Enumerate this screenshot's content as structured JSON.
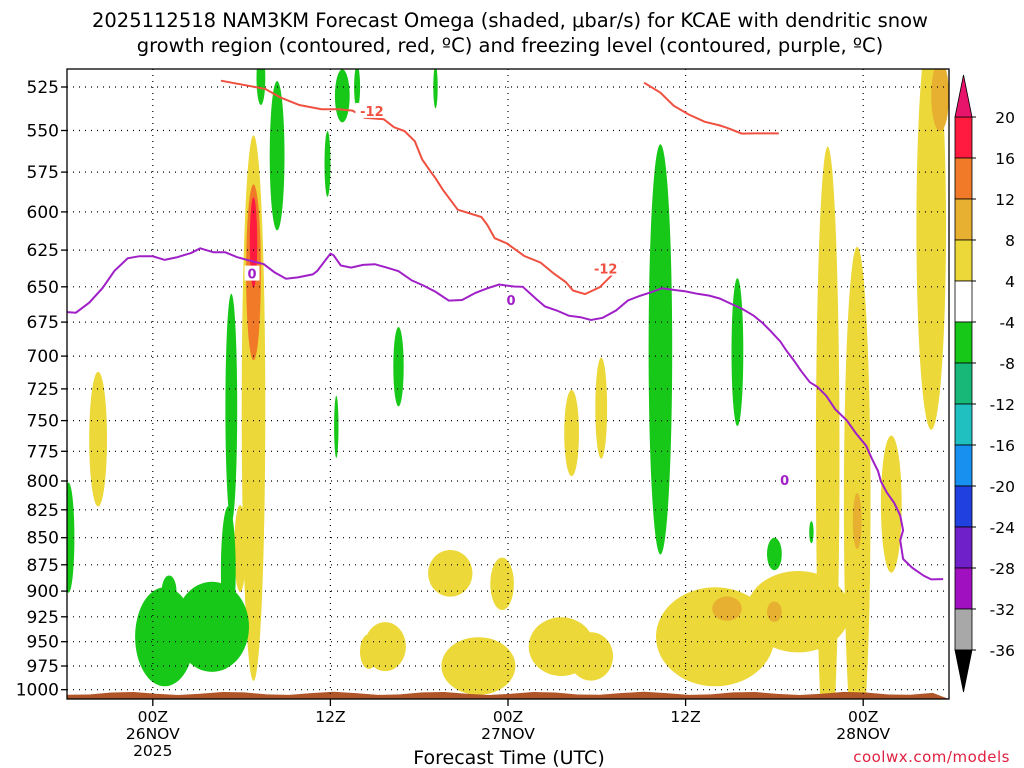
{
  "chart_data": {
    "type": "time-height cross section (filled contour + line contours)",
    "title_line1": "2025112518 NAM3KM Forecast Omega (shaded, μbar/s) for KCAE with dendritic snow",
    "title_line2": "growth region (contoured, red, ºC) and freezing level (contoured, purple, ºC)",
    "xlabel": "Forecast Time (UTC)",
    "ylabel_levels_hPa": [
      525,
      550,
      575,
      600,
      625,
      650,
      675,
      700,
      725,
      750,
      775,
      800,
      825,
      850,
      875,
      900,
      925,
      950,
      975,
      1000
    ],
    "ylim_hPa": [
      1010,
      515
    ],
    "xlim_hours_from_00Z26NOV": [
      -5.8,
      53.8
    ],
    "xticks": [
      {
        "hour": 0,
        "lines": [
          "00Z",
          "26NOV",
          "2025"
        ]
      },
      {
        "hour": 12,
        "lines": [
          "12Z"
        ]
      },
      {
        "hour": 24,
        "lines": [
          "00Z",
          "27NOV"
        ]
      },
      {
        "hour": 36,
        "lines": [
          "12Z"
        ]
      },
      {
        "hour": 48,
        "lines": [
          "00Z",
          "28NOV"
        ]
      }
    ],
    "grid": "dotted",
    "colorbar": {
      "position": "right",
      "labels": [
        20,
        16,
        12,
        8,
        4,
        -4,
        -8,
        -12,
        -16,
        -20,
        -24,
        -28,
        -32,
        -36
      ],
      "bands": [
        {
          "lo": 16,
          "hi": 20,
          "color": "#ff1a40"
        },
        {
          "lo": 12,
          "hi": 16,
          "color": "#f07a28"
        },
        {
          "lo": 8,
          "hi": 12,
          "color": "#e8b030"
        },
        {
          "lo": 4,
          "hi": 8,
          "color": "#ecd838"
        },
        {
          "lo": -4,
          "hi": 4,
          "color": "#ffffff"
        },
        {
          "lo": -8,
          "hi": -4,
          "color": "#18c818"
        },
        {
          "lo": -12,
          "hi": -8,
          "color": "#18b878"
        },
        {
          "lo": -16,
          "hi": -12,
          "color": "#20c0c0"
        },
        {
          "lo": -20,
          "hi": -16,
          "color": "#1890f0"
        },
        {
          "lo": -24,
          "hi": -20,
          "color": "#2040e0"
        },
        {
          "lo": -28,
          "hi": -24,
          "color": "#7020c8"
        },
        {
          "lo": -32,
          "hi": -28,
          "color": "#a010c0"
        },
        {
          "lo": -36,
          "hi": -32,
          "color": "#a8a8a8"
        }
      ],
      "top_arrow_color": "#e8146c",
      "bottom_arrow_color": "#000000"
    },
    "dgz_minus12_contour": {
      "label": "-12",
      "color": "#f05040",
      "branches": [
        {
          "points": [
            [
              4.6,
              521.5
            ],
            [
              7.6,
              526.1
            ],
            [
              8.6,
              530.8
            ],
            [
              9.9,
              535.2
            ],
            [
              11.4,
              537.6
            ],
            [
              12.5,
              537.6
            ],
            [
              13.5,
              538.4
            ],
            [
              14.3,
              542.6
            ],
            [
              15.6,
              543.4
            ],
            [
              16.3,
              548.1
            ],
            [
              17.0,
              550.3
            ],
            [
              17.7,
              556.3
            ],
            [
              18.2,
              567.3
            ],
            [
              18.8,
              575.1
            ],
            [
              19.1,
              578.8
            ],
            [
              19.6,
              586.0
            ],
            [
              20.6,
              598.6
            ],
            [
              22.2,
              603.3
            ],
            [
              22.6,
              608.4
            ],
            [
              23.1,
              617.1
            ],
            [
              23.9,
              620.4
            ],
            [
              24.7,
              626.1
            ],
            [
              25.1,
              629.0
            ],
            [
              26.2,
              633.4
            ],
            [
              27.1,
              640.9
            ],
            [
              27.9,
              646.7
            ],
            [
              28.4,
              652.7
            ],
            [
              29.2,
              655.1
            ],
            [
              30.2,
              650.3
            ],
            [
              31.1,
              641.1
            ],
            [
              31.7,
              632.6
            ]
          ]
        },
        {
          "points": [
            [
              33.2,
              522.6
            ],
            [
              34.3,
              528.2
            ],
            [
              35.2,
              535.6
            ],
            [
              36.2,
              540.6
            ],
            [
              37.3,
              544.9
            ],
            [
              38.3,
              547.0
            ],
            [
              38.8,
              548.4
            ],
            [
              39.8,
              551.8
            ],
            [
              40.6,
              551.7
            ],
            [
              42.3,
              551.7
            ]
          ]
        }
      ],
      "label_positions_hours": [
        [
          14.8,
          538.6
        ],
        [
          30.6,
          637.5
        ]
      ]
    },
    "freezing_level_0C_contour": {
      "label": "0",
      "color": "#a020c8",
      "points": [
        [
          -6.1,
          667.7
        ],
        [
          -5.2,
          668.3
        ],
        [
          -4.3,
          661.2
        ],
        [
          -3.4,
          650.9
        ],
        [
          -2.6,
          639.1
        ],
        [
          -1.7,
          630.5
        ],
        [
          -0.9,
          629.1
        ],
        [
          0.0,
          629.2
        ],
        [
          0.8,
          631.6
        ],
        [
          1.6,
          629.9
        ],
        [
          2.6,
          626.9
        ],
        [
          3.2,
          623.8
        ],
        [
          4.1,
          626.5
        ],
        [
          4.9,
          626.5
        ],
        [
          5.7,
          629.8
        ],
        [
          6.6,
          632.2
        ],
        [
          7.5,
          634.5
        ],
        [
          8.2,
          639.9
        ],
        [
          9.0,
          644.4
        ],
        [
          9.8,
          643.5
        ],
        [
          10.8,
          641.5
        ],
        [
          11.1,
          639.2
        ],
        [
          11.5,
          634.0
        ],
        [
          12.0,
          627.4
        ],
        [
          12.2,
          628.4
        ],
        [
          12.7,
          635.4
        ],
        [
          13.4,
          636.8
        ],
        [
          14.2,
          635.0
        ],
        [
          15.0,
          634.5
        ],
        [
          15.8,
          636.8
        ],
        [
          16.6,
          639.3
        ],
        [
          17.5,
          645.6
        ],
        [
          18.3,
          649.2
        ],
        [
          19.1,
          653.5
        ],
        [
          20.0,
          659.7
        ],
        [
          20.9,
          659.3
        ],
        [
          21.8,
          654.3
        ],
        [
          22.6,
          651.1
        ],
        [
          23.4,
          648.4
        ],
        [
          24.4,
          649.8
        ],
        [
          25.0,
          650.0
        ],
        [
          25.9,
          658.5
        ],
        [
          26.5,
          663.9
        ],
        [
          27.3,
          666.7
        ],
        [
          28.1,
          670.4
        ],
        [
          28.9,
          671.5
        ],
        [
          29.6,
          673.5
        ],
        [
          30.4,
          671.9
        ],
        [
          31.3,
          666.7
        ],
        [
          32.1,
          659.6
        ],
        [
          32.9,
          656.4
        ],
        [
          33.6,
          654.1
        ],
        [
          34.4,
          651.1
        ],
        [
          35.2,
          652.2
        ],
        [
          36.0,
          653.2
        ],
        [
          36.8,
          654.9
        ],
        [
          37.6,
          656.2
        ],
        [
          38.3,
          658.2
        ],
        [
          39.1,
          662.1
        ],
        [
          39.8,
          665.4
        ],
        [
          40.6,
          670.4
        ],
        [
          41.2,
          675.6
        ],
        [
          41.7,
          681.0
        ],
        [
          42.4,
          689.2
        ],
        [
          42.8,
          695.7
        ],
        [
          43.3,
          703.0
        ],
        [
          43.8,
          711.1
        ],
        [
          44.4,
          719.9
        ],
        [
          44.9,
          723.4
        ],
        [
          45.5,
          730.3
        ],
        [
          46.1,
          740.8
        ],
        [
          46.9,
          749.9
        ],
        [
          47.5,
          760.1
        ],
        [
          48.2,
          770.4
        ],
        [
          48.6,
          781.3
        ],
        [
          49.0,
          791.5
        ],
        [
          49.2,
          800.4
        ],
        [
          49.6,
          809.9
        ],
        [
          50.1,
          819.0
        ],
        [
          50.5,
          830.0
        ],
        [
          50.7,
          843.3
        ],
        [
          50.5,
          852.4
        ],
        [
          50.6,
          860.4
        ],
        [
          50.7,
          869.6
        ],
        [
          51.3,
          877.6
        ],
        [
          52.1,
          885.4
        ],
        [
          52.6,
          888.8
        ],
        [
          53.4,
          888.5
        ]
      ]
    },
    "label_0_positions_hours": [
      [
        6.7,
        640.9
      ],
      [
        24.2,
        659.4
      ],
      [
        42.7,
        799.2
      ]
    ],
    "surface_fill": {
      "color": "#b05528",
      "top_hPa": 1004
    },
    "shaded_regions": [
      {
        "category": "4",
        "center": [
          -3.7,
          765
        ],
        "rx_h": 0.6,
        "ry_hPa": 55
      },
      {
        "category": "4",
        "center": [
          6.8,
          740
        ],
        "rx_h": 0.8,
        "ry_hPa": 210
      },
      {
        "category": "4",
        "center": [
          5.9,
          860
        ],
        "rx_h": 0.4,
        "ry_hPa": 40
      },
      {
        "category": "12",
        "center": [
          6.8,
          640
        ],
        "rx_h": 0.5,
        "ry_hPa": 60
      },
      {
        "category": "20",
        "center": [
          6.8,
          620
        ],
        "rx_h": 0.25,
        "ry_hPa": 30
      },
      {
        "category": "4",
        "center": [
          14.6,
          960
        ],
        "rx_h": 0.6,
        "ry_hPa": 18
      },
      {
        "category": "4",
        "center": [
          15.7,
          955
        ],
        "rx_h": 1.4,
        "ry_hPa": 25
      },
      {
        "category": "4",
        "center": [
          20.1,
          883
        ],
        "rx_h": 1.5,
        "ry_hPa": 22
      },
      {
        "category": "4",
        "center": [
          23.6,
          893
        ],
        "rx_h": 0.8,
        "ry_hPa": 25
      },
      {
        "category": "4",
        "center": [
          22.0,
          975
        ],
        "rx_h": 2.5,
        "ry_hPa": 30
      },
      {
        "category": "4",
        "center": [
          27.6,
          955
        ],
        "rx_h": 2.2,
        "ry_hPa": 30
      },
      {
        "category": "4",
        "center": [
          29.6,
          965
        ],
        "rx_h": 1.5,
        "ry_hPa": 25
      },
      {
        "category": "4",
        "center": [
          28.3,
          760
        ],
        "rx_h": 0.5,
        "ry_hPa": 35
      },
      {
        "category": "4",
        "center": [
          30.3,
          740
        ],
        "rx_h": 0.4,
        "ry_hPa": 40
      },
      {
        "category": "4",
        "center": [
          38.0,
          945
        ],
        "rx_h": 4.0,
        "ry_hPa": 50
      },
      {
        "category": "4",
        "center": [
          43.6,
          920
        ],
        "rx_h": 3.5,
        "ry_hPa": 40
      },
      {
        "category": "4",
        "center": [
          45.6,
          780
        ],
        "rx_h": 0.8,
        "ry_hPa": 250
      },
      {
        "category": "4",
        "center": [
          47.6,
          820
        ],
        "rx_h": 0.9,
        "ry_hPa": 220
      },
      {
        "category": "4",
        "center": [
          49.9,
          820
        ],
        "rx_h": 0.7,
        "ry_hPa": 60
      },
      {
        "category": "4",
        "center": [
          52.6,
          610
        ],
        "rx_h": 1.0,
        "ry_hPa": 130
      },
      {
        "category": "8",
        "center": [
          47.6,
          835
        ],
        "rx_h": 0.3,
        "ry_hPa": 25
      },
      {
        "category": "8",
        "center": [
          38.8,
          917
        ],
        "rx_h": 1.0,
        "ry_hPa": 12
      },
      {
        "category": "8",
        "center": [
          42.0,
          920
        ],
        "rx_h": 0.5,
        "ry_hPa": 10
      },
      {
        "category": "8",
        "center": [
          53.2,
          530
        ],
        "rx_h": 0.6,
        "ry_hPa": 20
      },
      {
        "category": "-4",
        "center": [
          -5.7,
          850
        ],
        "rx_h": 0.4,
        "ry_hPa": 50
      },
      {
        "category": "-4",
        "center": [
          0.8,
          945
        ],
        "rx_h": 2.0,
        "ry_hPa": 50
      },
      {
        "category": "-4",
        "center": [
          4.0,
          935
        ],
        "rx_h": 2.5,
        "ry_hPa": 45
      },
      {
        "category": "-4",
        "center": [
          1.1,
          900
        ],
        "rx_h": 0.5,
        "ry_hPa": 15
      },
      {
        "category": "-4",
        "center": [
          5.1,
          880
        ],
        "rx_h": 0.5,
        "ry_hPa": 60
      },
      {
        "category": "-4",
        "center": [
          5.3,
          740
        ],
        "rx_h": 0.4,
        "ry_hPa": 90
      },
      {
        "category": "-4",
        "center": [
          7.3,
          520
        ],
        "rx_h": 0.3,
        "ry_hPa": 15
      },
      {
        "category": "-4",
        "center": [
          8.4,
          565
        ],
        "rx_h": 0.5,
        "ry_hPa": 45
      },
      {
        "category": "-4",
        "center": [
          11.8,
          570
        ],
        "rx_h": 0.2,
        "ry_hPa": 20
      },
      {
        "category": "-4",
        "center": [
          12.8,
          530
        ],
        "rx_h": 0.5,
        "ry_hPa": 15
      },
      {
        "category": "-4",
        "center": [
          12.4,
          755
        ],
        "rx_h": 0.15,
        "ry_hPa": 25
      },
      {
        "category": "-4",
        "center": [
          13.8,
          525
        ],
        "rx_h": 0.2,
        "ry_hPa": 12
      },
      {
        "category": "-4",
        "center": [
          16.6,
          708
        ],
        "rx_h": 0.35,
        "ry_hPa": 30
      },
      {
        "category": "-4",
        "center": [
          19.1,
          525
        ],
        "rx_h": 0.15,
        "ry_hPa": 12
      },
      {
        "category": "-4",
        "center": [
          34.3,
          695
        ],
        "rx_h": 0.8,
        "ry_hPa": 150
      },
      {
        "category": "-4",
        "center": [
          39.5,
          697
        ],
        "rx_h": 0.4,
        "ry_hPa": 55
      },
      {
        "category": "-4",
        "center": [
          42.0,
          865
        ],
        "rx_h": 0.5,
        "ry_hPa": 15
      },
      {
        "category": "-4",
        "center": [
          44.5,
          845
        ],
        "rx_h": 0.15,
        "ry_hPa": 10
      }
    ]
  },
  "credit": "coolwx.com/models"
}
